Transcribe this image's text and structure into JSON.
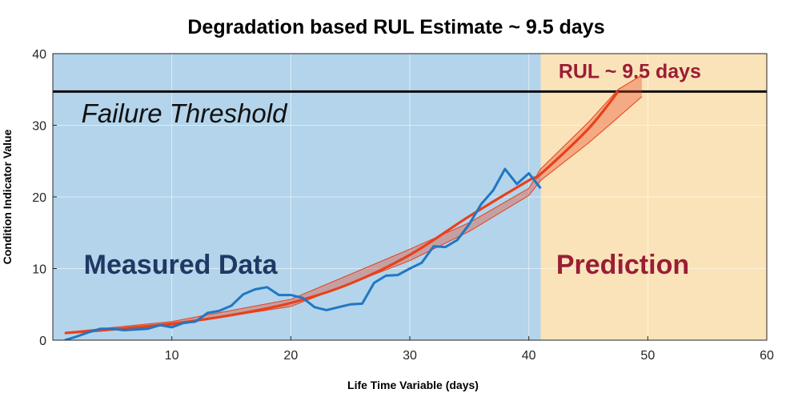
{
  "chart_data": {
    "type": "line",
    "title": "Degradation based RUL Estimate ~ 9.5 days",
    "xlabel": "Life Time Variable (days)",
    "ylabel": "Condition Indicator Value",
    "xlim": [
      0,
      60
    ],
    "ylim": [
      0,
      40
    ],
    "xticks": [
      10,
      20,
      30,
      40,
      50,
      60
    ],
    "yticks": [
      0,
      10,
      20,
      30,
      40
    ],
    "grid": true,
    "regions": [
      {
        "label": "Measured Data",
        "x_range": [
          0,
          41
        ],
        "color": "#b3d4ea",
        "label_color": "#1f3864"
      },
      {
        "label": "Prediction",
        "x_range": [
          41,
          60
        ],
        "color": "#fae3b8",
        "label_color": "#9b1d36"
      }
    ],
    "threshold": {
      "label": "Failure Threshold",
      "y": 34.7,
      "color": "#0b0b0b"
    },
    "rul_annotation": {
      "label": "RUL ~ 9.5 days",
      "color": "#9b1d36"
    },
    "series": [
      {
        "color": "#1f77c4",
        "x": [
          1,
          2,
          3,
          4,
          5,
          6,
          7,
          8,
          9,
          10,
          11,
          12,
          13,
          14,
          15,
          16,
          17,
          18,
          19,
          20,
          21,
          22,
          23,
          24,
          25,
          26,
          27,
          28,
          29,
          30,
          31,
          32,
          33,
          34,
          35,
          36,
          37,
          38,
          39,
          40,
          41
        ],
        "y": [
          0,
          0.5,
          1.1,
          1.6,
          1.6,
          1.4,
          1.5,
          1.6,
          2.1,
          1.8,
          2.4,
          2.6,
          3.8,
          4.1,
          4.8,
          6.4,
          7.1,
          7.4,
          6.3,
          6.3,
          5.9,
          4.6,
          4.2,
          4.6,
          5.0,
          5.1,
          8.0,
          9.0,
          9.1,
          10.0,
          10.8,
          13.1,
          13.0,
          14.0,
          16.2,
          19.0,
          20.9,
          23.9,
          21.8,
          23.3,
          21.2
        ]
      },
      {
        "color": "#e8401c",
        "x": [
          1,
          5,
          10,
          15,
          20,
          25,
          30,
          35,
          40,
          41,
          45,
          47.5
        ],
        "y": [
          1.0,
          1.5,
          2.3,
          3.5,
          5.2,
          7.9,
          11.9,
          17.3,
          22.3,
          23.2,
          29.5,
          34.7
        ]
      }
    ],
    "confidence_band": {
      "color": "#e8401c",
      "x": [
        1,
        10,
        20,
        30,
        35,
        40,
        41,
        45,
        47.5,
        49.5
      ],
      "upper": [
        1.1,
        2.6,
        5.7,
        12.7,
        16.4,
        21.2,
        23.9,
        30.4,
        35.0,
        37.0
      ],
      "lower": [
        0.9,
        2.1,
        4.7,
        11.1,
        15.2,
        20.2,
        22.3,
        27.5,
        31.1,
        34.0
      ]
    }
  }
}
